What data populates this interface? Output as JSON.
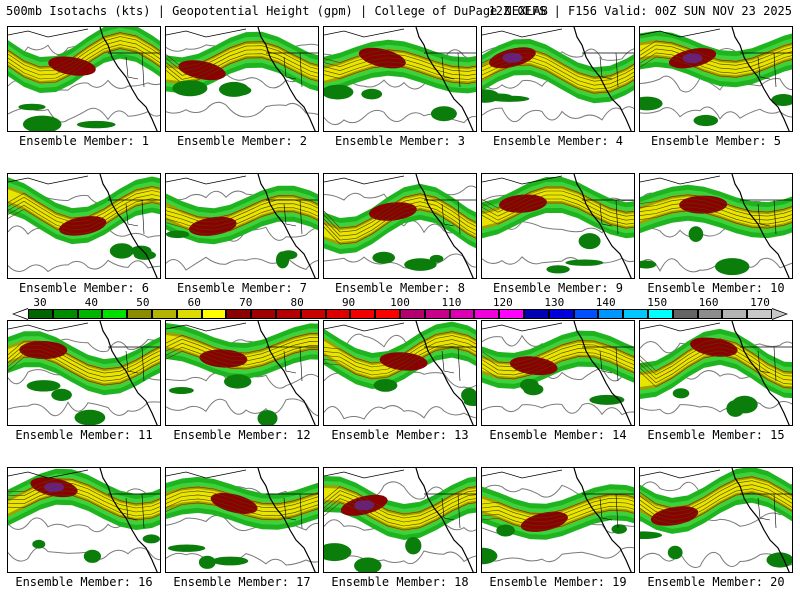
{
  "header": {
    "title_left": "500mb Isotachs (kts) | Geopotential Height (gpm) | College of DuPage NEXLAB",
    "title_right": "12Z GEFS | F156 Valid: 00Z SUN NOV 23 2025"
  },
  "colorbar": {
    "tick_labels": [
      "30",
      "40",
      "50",
      "60",
      "70",
      "80",
      "90",
      "100",
      "110",
      "120",
      "130",
      "140",
      "150",
      "160",
      "170"
    ],
    "colors": [
      "#006400",
      "#008c00",
      "#00b400",
      "#00e000",
      "#8c8c00",
      "#b4b400",
      "#dcdc00",
      "#ffff00",
      "#8b0000",
      "#a00000",
      "#b40000",
      "#c80000",
      "#dc0000",
      "#f00000",
      "#ff0000",
      "#b4006e",
      "#c8008c",
      "#dc00b4",
      "#f000dc",
      "#ff00ff",
      "#0000b4",
      "#0000dc",
      "#0050ff",
      "#0096ff",
      "#00c8ff",
      "#00ffff",
      "#646464",
      "#8c8c8c",
      "#b4b4b4",
      "#c8c8c8"
    ],
    "min_value": 30,
    "max_value": 170
  },
  "members": [
    {
      "label": "Ensemble Member: 1",
      "peak": "dark-red"
    },
    {
      "label": "Ensemble Member: 2",
      "peak": "dark-red"
    },
    {
      "label": "Ensemble Member: 3",
      "peak": "dark-red"
    },
    {
      "label": "Ensemble Member: 4",
      "peak": "purple"
    },
    {
      "label": "Ensemble Member: 5",
      "peak": "purple"
    },
    {
      "label": "Ensemble Member: 6",
      "peak": "dark-red"
    },
    {
      "label": "Ensemble Member: 7",
      "peak": "dark-red"
    },
    {
      "label": "Ensemble Member: 8",
      "peak": "dark-red"
    },
    {
      "label": "Ensemble Member: 9",
      "peak": "dark-red"
    },
    {
      "label": "Ensemble Member: 10",
      "peak": "dark-red"
    },
    {
      "label": "Ensemble Member: 11",
      "peak": "dark-red"
    },
    {
      "label": "Ensemble Member: 12",
      "peak": "dark-red"
    },
    {
      "label": "Ensemble Member: 13",
      "peak": "dark-red"
    },
    {
      "label": "Ensemble Member: 14",
      "peak": "dark-red"
    },
    {
      "label": "Ensemble Member: 15",
      "peak": "dark-red"
    },
    {
      "label": "Ensemble Member: 16",
      "peak": "purple"
    },
    {
      "label": "Ensemble Member: 17",
      "peak": "dark-red"
    },
    {
      "label": "Ensemble Member: 18",
      "peak": "purple"
    },
    {
      "label": "Ensemble Member: 19",
      "peak": "dark-red"
    },
    {
      "label": "Ensemble Member: 20",
      "peak": "dark-red"
    }
  ],
  "legend_colors": {
    "green_dark": "#0a7d0a",
    "green": "#1fb41f",
    "green_light": "#3cd23c",
    "olive": "#a0a000",
    "yellow": "#e6e600",
    "dark_red": "#8b0000",
    "red": "#c80000",
    "purple": "#6b1d8c",
    "height_contour": "#7a7a7a",
    "coastline": "#000000",
    "border": "#000000"
  }
}
